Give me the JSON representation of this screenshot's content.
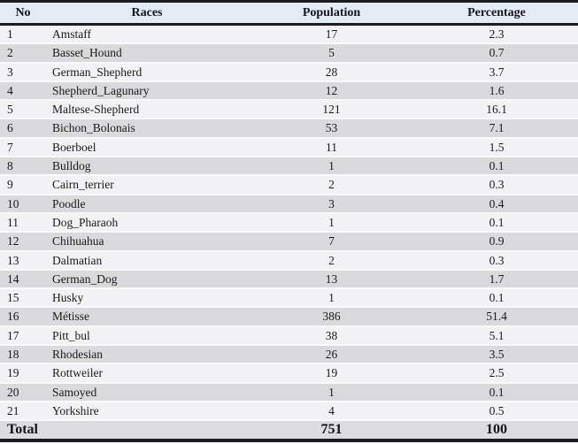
{
  "colors": {
    "border_dark": "#1b1b24",
    "header_bg": "#e3ebf5",
    "row_odd_bg": "#f2f2f4",
    "row_even_bg": "#dadadc",
    "total_row_bg": "#dcdcde",
    "text": "#1a1a1a"
  },
  "table": {
    "columns": [
      {
        "key": "no",
        "label": "No"
      },
      {
        "key": "race",
        "label": "Races"
      },
      {
        "key": "population",
        "label": "Population"
      },
      {
        "key": "percentage",
        "label": "Percentage"
      }
    ],
    "rows": [
      {
        "no": "1",
        "race": "Amstaff",
        "population": "17",
        "percentage": "2.3"
      },
      {
        "no": "2",
        "race": "Basset_Hound",
        "population": "5",
        "percentage": "0.7"
      },
      {
        "no": "3",
        "race": "German_Shepherd",
        "population": "28",
        "percentage": "3.7"
      },
      {
        "no": "4",
        "race": "Shepherd_Lagunary",
        "population": "12",
        "percentage": "1.6"
      },
      {
        "no": "5",
        "race": "Maltese-Shepherd",
        "population": "121",
        "percentage": "16.1"
      },
      {
        "no": "6",
        "race": "Bichon_Bolonais",
        "population": "53",
        "percentage": "7.1"
      },
      {
        "no": "7",
        "race": "Boerboel",
        "population": "11",
        "percentage": "1.5"
      },
      {
        "no": "8",
        "race": "Bulldog",
        "population": "1",
        "percentage": "0.1"
      },
      {
        "no": "9",
        "race": "Cairn_terrier",
        "population": "2",
        "percentage": "0.3"
      },
      {
        "no": "10",
        "race": "Poodle",
        "population": "3",
        "percentage": "0.4"
      },
      {
        "no": "11",
        "race": "Dog_Pharaoh",
        "population": "1",
        "percentage": "0.1"
      },
      {
        "no": "12",
        "race": "Chihuahua",
        "population": "7",
        "percentage": "0.9"
      },
      {
        "no": "13",
        "race": "Dalmatian",
        "population": "2",
        "percentage": "0.3"
      },
      {
        "no": "14",
        "race": "German_Dog",
        "population": "13",
        "percentage": "1.7"
      },
      {
        "no": "15",
        "race": "Husky",
        "population": "1",
        "percentage": "0.1"
      },
      {
        "no": "16",
        "race": "Métisse",
        "population": "386",
        "percentage": "51.4"
      },
      {
        "no": "17",
        "race": "Pitt_bul",
        "population": "38",
        "percentage": "5.1"
      },
      {
        "no": "18",
        "race": "Rhodesian",
        "population": "26",
        "percentage": "3.5"
      },
      {
        "no": "19",
        "race": "Rottweiler",
        "population": "19",
        "percentage": "2.5"
      },
      {
        "no": "20",
        "race": "Samoyed",
        "population": "1",
        "percentage": "0.1"
      },
      {
        "no": "21",
        "race": "Yorkshire",
        "population": "4",
        "percentage": "0.5"
      }
    ],
    "total": {
      "label": "Total",
      "race": "",
      "population": "751",
      "percentage": "100"
    }
  }
}
